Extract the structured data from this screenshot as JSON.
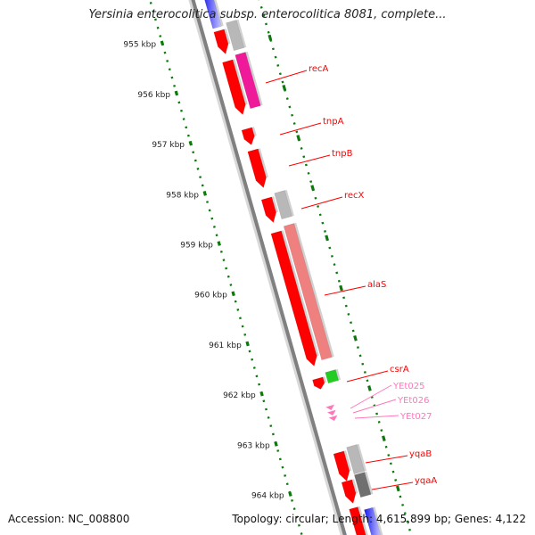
{
  "title": "Yersinia enterocolitica subsp. enterocolitica 8081, complete...",
  "footer": {
    "accession": "Accession: NC_008800",
    "stats": "Topology: circular; Length: 4,615,899 bp; Genes: 4,122"
  },
  "scale": {
    "ticks": [
      "955 kbp",
      "956 kbp",
      "957 kbp",
      "958 kbp",
      "959 kbp",
      "960 kbp",
      "961 kbp",
      "962 kbp",
      "963 kbp",
      "964 kbp"
    ]
  },
  "genes": [
    {
      "label": "recA"
    },
    {
      "label": "tnpA"
    },
    {
      "label": "tnpB"
    },
    {
      "label": "recX"
    },
    {
      "label": "alaS"
    },
    {
      "label": "csrA"
    },
    {
      "label": "YEt025"
    },
    {
      "label": "YEt026"
    },
    {
      "label": "YEt027"
    },
    {
      "label": "yqaB"
    },
    {
      "label": "yqaA"
    }
  ],
  "colors": {
    "gene_red": "#ff0000",
    "gene_red_dark": "#c40000",
    "trna_pink": "#ff77bb",
    "cog_magenta": "#ee1a99",
    "cog_salmon": "#ee8080",
    "cog_gray": "#b8b8b8",
    "cog_dark_gray": "#707070",
    "cog_green": "#22cc22",
    "backbone": "#808080",
    "tick_green": "#0a7a0a",
    "blue_rna": "#1a1aee"
  }
}
